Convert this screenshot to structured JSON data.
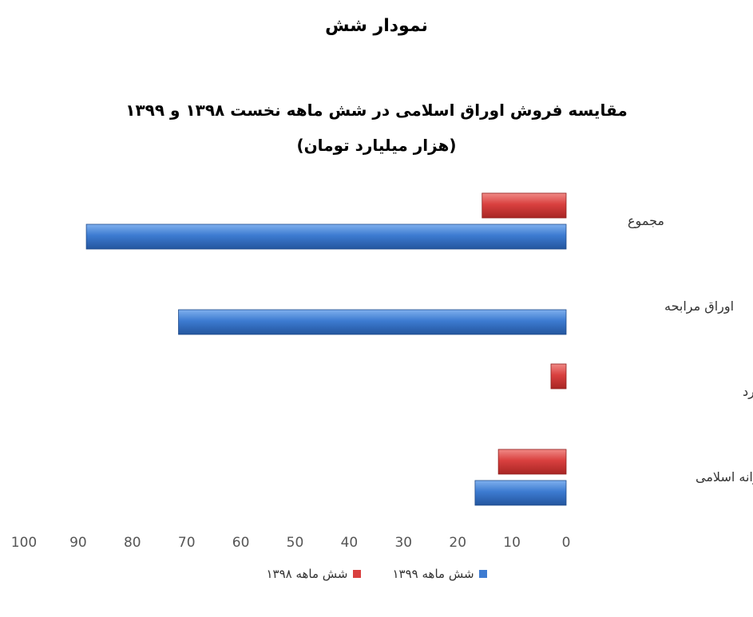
{
  "caption": "نمودار شش",
  "chart_data": {
    "type": "bar",
    "orientation": "horizontal",
    "title_lines": [
      "مقایسه فروش اوراق اسلامی در شش ماهه نخست ۱۳۹۸ و ۱۳۹۹",
      "(هزار میلیارد تومان)"
    ],
    "categories": [
      "مجموع",
      "اوراق مرابحه",
      "اوراق سلف موازی استاندارد",
      "اسناد خزانه اسلامی"
    ],
    "series": [
      {
        "name": "شش ماهه ۱۳۹۸",
        "color": "#d9403f",
        "values": [
          15.5,
          0,
          2.8,
          12.5
        ]
      },
      {
        "name": "شش ماهه ۱۳۹۹",
        "color": "#3d7bd1",
        "values": [
          88.5,
          71.5,
          0,
          16.8
        ]
      }
    ],
    "xlim": [
      0,
      100
    ],
    "x_ticks": [
      "0",
      "10",
      "20",
      "30",
      "40",
      "50",
      "60",
      "70",
      "80",
      "90",
      "100"
    ],
    "x_direction": "reversed",
    "grid": false,
    "legend_position": "bottom"
  }
}
